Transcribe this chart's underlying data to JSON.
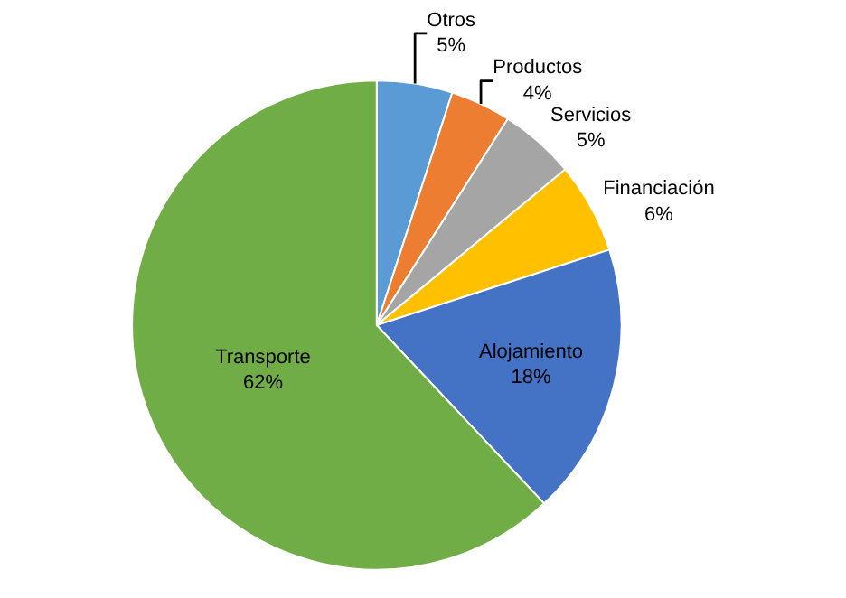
{
  "chart_data": {
    "type": "pie",
    "categories": [
      "Otros",
      "Productos",
      "Servicios",
      "Financiación",
      "Alojamiento",
      "Transporte"
    ],
    "values": [
      5,
      4,
      5,
      6,
      18,
      62
    ],
    "value_labels": [
      "5%",
      "4%",
      "5%",
      "6%",
      "18%",
      "62%"
    ],
    "colors": [
      "#5b9bd5",
      "#ed7d31",
      "#a5a5a5",
      "#ffc000",
      "#4472c4",
      "#70ad47"
    ],
    "legend": false
  }
}
